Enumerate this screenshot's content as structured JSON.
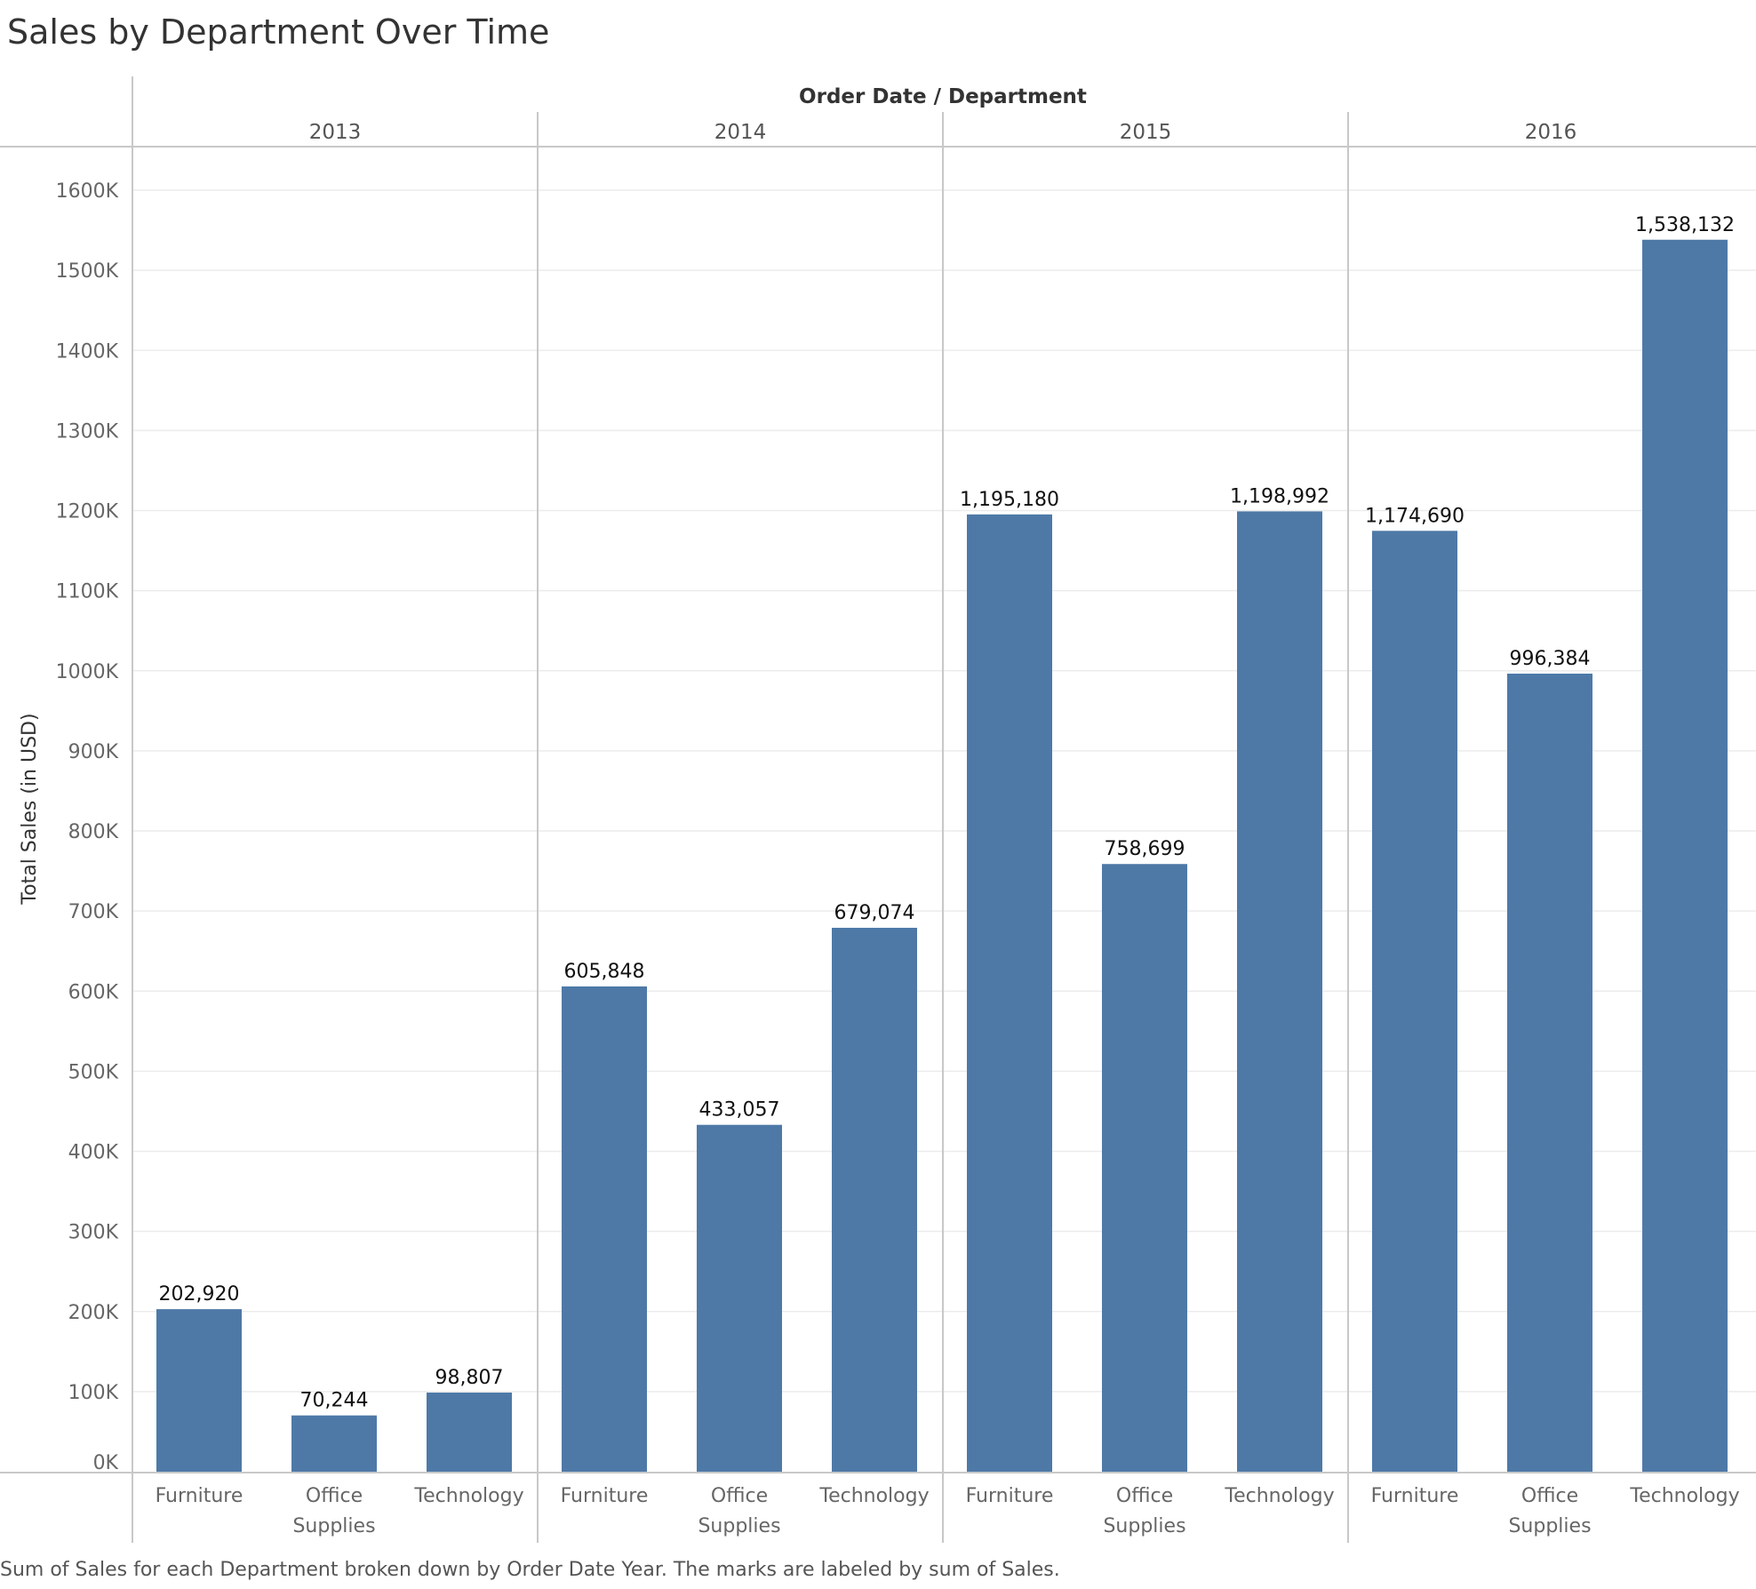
{
  "chart_data": {
    "type": "bar",
    "title": "Sales by Department Over Time",
    "column_header": "Order Date / Department",
    "ylabel": "Total Sales (in USD)",
    "ylim": [
      0,
      1600000
    ],
    "y_ticks": [
      0,
      100000,
      200000,
      300000,
      400000,
      500000,
      600000,
      700000,
      800000,
      900000,
      1000000,
      1100000,
      1200000,
      1300000,
      1400000,
      1500000,
      1600000
    ],
    "y_tick_labels": [
      "0K",
      "100K",
      "200K",
      "300K",
      "400K",
      "500K",
      "600K",
      "700K",
      "800K",
      "900K",
      "1000K",
      "1100K",
      "1200K",
      "1300K",
      "1400K",
      "1500K",
      "1600K"
    ],
    "groups": [
      "2013",
      "2014",
      "2015",
      "2016"
    ],
    "category_labels": [
      [
        "Furniture"
      ],
      [
        "Office",
        "Supplies"
      ],
      [
        "Technology"
      ]
    ],
    "values": [
      [
        202920,
        70244,
        98807
      ],
      [
        605848,
        433057,
        679074
      ],
      [
        1195180,
        758699,
        1198992
      ],
      [
        1174690,
        996384,
        1538132
      ]
    ],
    "value_labels": [
      [
        "202,920",
        "70,244",
        "98,807"
      ],
      [
        "605,848",
        "433,057",
        "679,074"
      ],
      [
        "1,195,180",
        "758,699",
        "1,198,992"
      ],
      [
        "1,174,690",
        "996,384",
        "1,538,132"
      ]
    ],
    "bar_color": "#4e79a7",
    "grid": true,
    "caption": "Sum of Sales for each Department broken down by Order Date Year.  The marks are labeled by sum of Sales."
  }
}
